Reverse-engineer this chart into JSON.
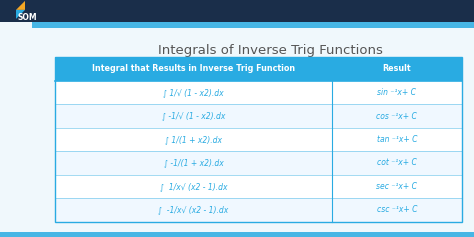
{
  "title": "Integrals of Inverse Trig Functions",
  "title_fontsize": 9.5,
  "title_color": "#555555",
  "bg_color": "#f0f8fc",
  "header_bg": "#29abe2",
  "header_text_color": "#ffffff",
  "row_bg_white": "#ffffff",
  "row_bg_light": "#f0f8ff",
  "cell_text_color": "#29abe2",
  "border_color": "#29abe2",
  "col1_header": "Integral that Results in Inverse Trig Function",
  "col2_header": "Result",
  "rows": [
    [
      "∫ 1/√ (1 - x2).dx",
      "sin ⁻¹x+ C"
    ],
    [
      "∫ -1/√ (1 - x2).dx",
      "cos ⁻¹x+ C"
    ],
    [
      "∫ 1/(1 + x2).dx",
      "tan ⁻¹x+ C"
    ],
    [
      "∫ -1/(1 + x2).dx",
      "cot ⁻¹x+ C"
    ],
    [
      "∫  1/x√ (x2 - 1).dx",
      "sec ⁻¹x+ C"
    ],
    [
      "∫  -1/x√ (x2 - 1).dx",
      "csc ⁻¹x+ C"
    ]
  ],
  "top_stripe_color": "#29abe2",
  "top_banner_color": "#1a2e4a",
  "bottom_stripe_color": "#29abe2",
  "logo_bg": "#1a2e4a",
  "logo_orange": "#f5a623",
  "logo_blue": "#29abe2",
  "logo_text_color": "#ffffff"
}
